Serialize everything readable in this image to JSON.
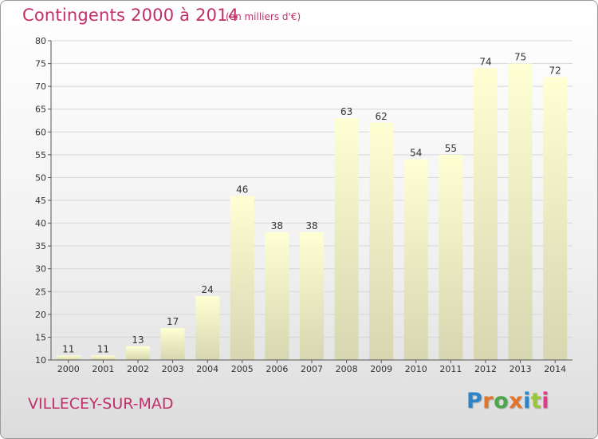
{
  "title": "Contingents 2000 à 2014",
  "subtitle": "(en milliers d'€)",
  "place": "VILLECEY-SUR-MAD",
  "logo": {
    "text": "Proxiti",
    "letter_colors": [
      "#2f84c8",
      "#e4742a",
      "#4aa84a",
      "#e4742a",
      "#2f84c8",
      "#9ac63a",
      "#e23a8a"
    ]
  },
  "colors": {
    "title": "#c0306a",
    "bar_light": "#ffffd0",
    "bar_dark": "#d8d8b0",
    "axis": "#555555",
    "grid": "#dddddd"
  },
  "chart_data": {
    "type": "bar",
    "categories": [
      "2000",
      "2001",
      "2002",
      "2003",
      "2004",
      "2005",
      "2006",
      "2007",
      "2008",
      "2009",
      "2010",
      "2011",
      "2012",
      "2013",
      "2014"
    ],
    "values": [
      11,
      11,
      13,
      17,
      24,
      46,
      38,
      38,
      63,
      62,
      54,
      55,
      74,
      75,
      72
    ],
    "title": "Contingents 2000 à 2014",
    "ylim": [
      10,
      80
    ],
    "yticks": [
      10,
      15,
      20,
      25,
      30,
      35,
      40,
      45,
      50,
      55,
      60,
      65,
      70,
      75,
      80
    ],
    "grid": true,
    "data_labels": true
  }
}
